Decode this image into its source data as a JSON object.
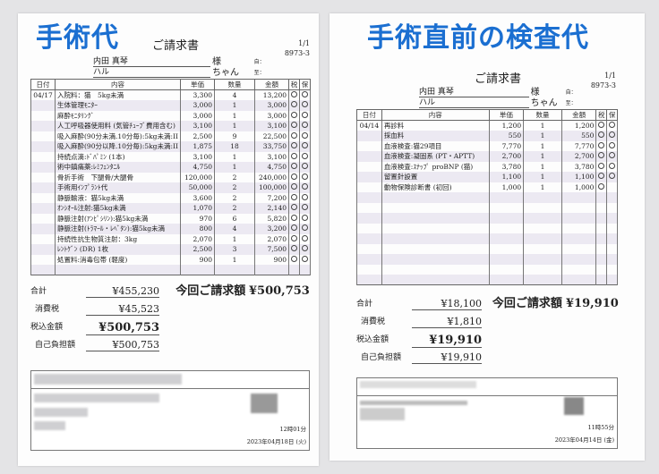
{
  "left": {
    "heading": "手術代",
    "doc_title": "ご請求書",
    "page": "1/1",
    "id": "8973-3",
    "owner": "内田 真琴",
    "owner_suffix": "様",
    "pet": "ハル",
    "pet_suffix": "ちゃん",
    "from_label": "自：",
    "to_label": "至：",
    "columns": [
      "日付",
      "内容",
      "単価",
      "数量",
      "金額",
      "税",
      "保"
    ],
    "date": "04/17",
    "rows": [
      [
        "入院料：猫　5kg未満",
        "3,300",
        "4",
        "13,200",
        true,
        true
      ],
      [
        "生体管理ﾓﾆﾀｰ",
        "3,000",
        "1",
        "3,000",
        true,
        true
      ],
      [
        "麻酔ﾓﾆﾀﾘﾝｸﾞ",
        "3,000",
        "1",
        "3,000",
        true,
        true
      ],
      [
        "人工呼吸器使用料 (気管ﾁｭｰﾌﾞ費用含む)",
        "3,100",
        "1",
        "3,100",
        true,
        true
      ],
      [
        "吸入麻酔(90分未満.10分毎):5kg未満:II",
        "2,500",
        "9",
        "22,500",
        true,
        true
      ],
      [
        "吸入麻酔(90分以降.10分毎):5kg未満:II",
        "1,875",
        "18",
        "33,750",
        true,
        true
      ],
      [
        "持続点滴:ﾄﾞﾊﾟﾐﾝ (1本)",
        "3,100",
        "1",
        "3,100",
        true,
        true
      ],
      [
        "術中鎮痛薬:ﾚﾐﾌｪﾝﾀﾆﾙ",
        "4,750",
        "1",
        "4,750",
        true,
        true
      ],
      [
        "骨折手術　下腿骨/大腿骨",
        "120,000",
        "2",
        "240,000",
        true,
        true
      ],
      [
        "手術用ｲﾝﾌﾟﾗﾝﾄ代",
        "50,000",
        "2",
        "100,000",
        true,
        true
      ],
      [
        "静脈輸液：猫5kg未満",
        "3,600",
        "2",
        "7,200",
        true,
        true
      ],
      [
        "ｵﾝｼｵｰﾙ注射:猫5kg未満",
        "1,070",
        "2",
        "2,140",
        true,
        true
      ],
      [
        "静脈注射(ｱﾝﾋﾟｼﾘﾝ):猫5kg未満",
        "970",
        "6",
        "5,820",
        true,
        true
      ],
      [
        "静脈注射(ﾄﾗﾏｰﾙ・ﾚﾍﾞﾀﾝ):猫5kg未満",
        "800",
        "4",
        "3,200",
        true,
        true
      ],
      [
        "持続性抗生物質注射：3kg",
        "2,070",
        "1",
        "2,070",
        true,
        true
      ],
      [
        "ﾚﾝﾄｹﾞﾝ (DR) 1枚",
        "2,500",
        "3",
        "7,500",
        true,
        true
      ],
      [
        "処置料:消毒包帯 (軽度)",
        "900",
        "1",
        "900",
        true,
        true
      ]
    ],
    "summary": {
      "subtotal_label": "合計",
      "subtotal": "¥455,230",
      "tax_label": "消費税",
      "tax": "¥45,523",
      "taxed_label": "税込金額",
      "taxed": "¥500,753",
      "self_label": "自己負担額",
      "self": "¥500,753",
      "billed_label": "今回ご請求額",
      "billed": "¥500,753"
    },
    "time": "12時01分",
    "date_full": "2023年04月18日 (火)"
  },
  "right": {
    "heading": "手術直前の検査代",
    "doc_title": "ご請求書",
    "page": "1/1",
    "id": "8973-3",
    "owner": "内田 真琴",
    "owner_suffix": "様",
    "pet": "ハル",
    "pet_suffix": "ちゃん",
    "from_label": "自：",
    "to_label": "至：",
    "columns": [
      "日付",
      "内容",
      "単価",
      "数量",
      "金額",
      "税",
      "保"
    ],
    "date": "04/14",
    "rows": [
      [
        "再診料",
        "1,200",
        "1",
        "1,200",
        true,
        true
      ],
      [
        "採血料",
        "550",
        "1",
        "550",
        true,
        true
      ],
      [
        "血液検査:猫29項目",
        "7,770",
        "1",
        "7,770",
        true,
        true
      ],
      [
        "血液検査:凝固系 (PT・APTT)",
        "2,700",
        "1",
        "2,700",
        true,
        true
      ],
      [
        "血液検査:ｽﾅｯﾌﾟ proBNP (猫)",
        "3,780",
        "1",
        "3,780",
        true,
        true
      ],
      [
        "留置針設置",
        "1,100",
        "1",
        "1,100",
        true,
        true
      ],
      [
        "動物保険診断書 (初回)",
        "1,000",
        "1",
        "1,000",
        true,
        false
      ]
    ],
    "summary": {
      "subtotal_label": "合計",
      "subtotal": "¥18,100",
      "tax_label": "消費税",
      "tax": "¥1,810",
      "taxed_label": "税込金額",
      "taxed": "¥19,910",
      "self_label": "自己負担額",
      "self": "¥19,910",
      "billed_label": "今回ご請求額",
      "billed": "¥19,910"
    },
    "time": "11時55分",
    "date_full": "2023年04月14日 (金)"
  },
  "colors": {
    "heading": "#1b6fd1",
    "stripe": "#ece9f2"
  }
}
